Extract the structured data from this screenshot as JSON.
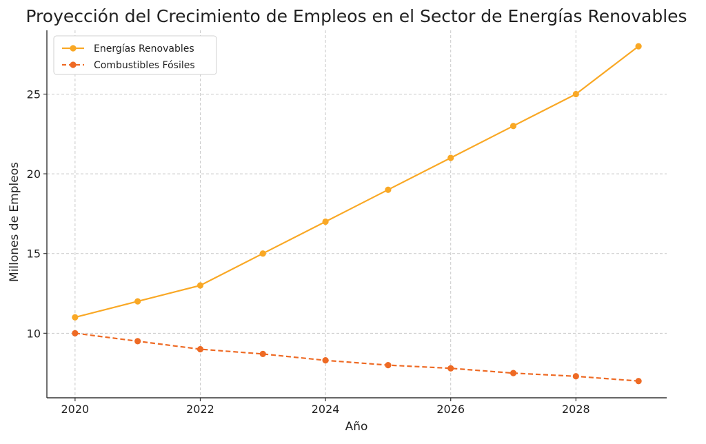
{
  "chart_data": {
    "type": "line",
    "title": "Proyección del Crecimiento de Empleos en el Sector de Energías Renovables",
    "xlabel": "Año",
    "ylabel": "Millones de Empleos",
    "x": [
      2020,
      2021,
      2022,
      2023,
      2024,
      2025,
      2026,
      2027,
      2028,
      2029
    ],
    "xticks": [
      2020,
      2022,
      2024,
      2026,
      2028
    ],
    "xtick_labels": [
      "2020",
      "2022",
      "2024",
      "2026",
      "2028"
    ],
    "yticks": [
      10,
      15,
      20,
      25
    ],
    "ytick_labels": [
      "10",
      "15",
      "20",
      "25"
    ],
    "xlim": [
      2019.55,
      2029.45
    ],
    "ylim": [
      5.95,
      29.0
    ],
    "grid": true,
    "legend_position": "top-left",
    "series": [
      {
        "name": "Energías Renovables",
        "values": [
          11,
          12,
          13,
          15,
          17,
          19,
          21,
          23,
          25,
          28
        ],
        "color": "#F9A825",
        "line_style": "solid",
        "marker": "circle"
      },
      {
        "name": "Combustibles Fósiles",
        "values": [
          10,
          9.5,
          9,
          8.7,
          8.3,
          8,
          7.8,
          7.5,
          7.3,
          7
        ],
        "color": "#EE6A24",
        "line_style": "dashed",
        "marker": "circle"
      }
    ]
  }
}
